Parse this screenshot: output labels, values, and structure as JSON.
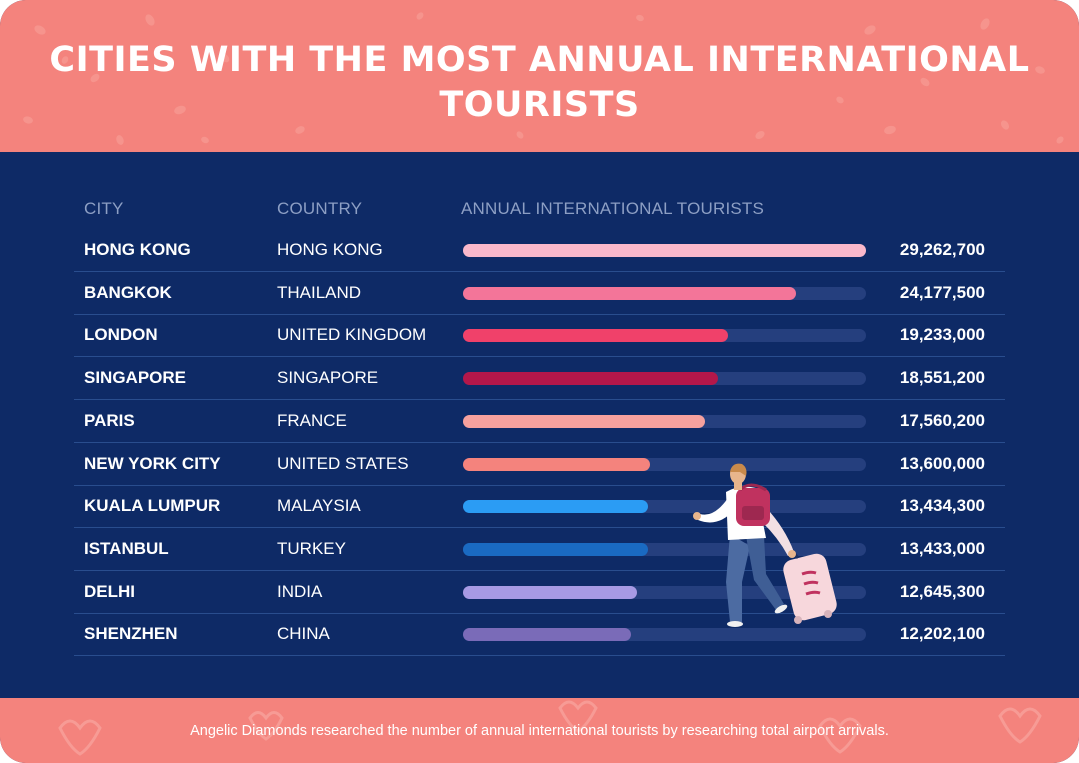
{
  "title": "CITIES WITH THE MOST ANNUAL INTERNATIONAL TOURISTS",
  "columns": {
    "city": "CITY",
    "country": "COUNTRY",
    "tourists": "ANNUAL INTERNATIONAL TOURISTS"
  },
  "footer": "Angelic Diamonds researched the number of annual international tourists by researching total airport arrivals.",
  "chart_data": {
    "type": "bar",
    "orientation": "horizontal",
    "title": "CITIES WITH THE MOST ANNUAL INTERNATIONAL TOURISTS",
    "categories": [
      "HONG KONG",
      "BANGKOK",
      "LONDON",
      "SINGAPORE",
      "PARIS",
      "NEW YORK CITY",
      "KUALA LUMPUR",
      "ISTANBUL",
      "DELHI",
      "SHENZHEN"
    ],
    "countries": [
      "HONG KONG",
      "THAILAND",
      "UNITED KINGDOM",
      "SINGAPORE",
      "FRANCE",
      "UNITED STATES",
      "MALAYSIA",
      "TURKEY",
      "INDIA",
      "CHINA"
    ],
    "values": [
      29262700,
      24177500,
      19233000,
      18551200,
      17560200,
      13600000,
      13434300,
      13433000,
      12645300,
      12202100
    ],
    "value_labels": [
      "29,262,700",
      "24,177,500",
      "19,233,000",
      "18,551,200",
      "17,560,200",
      "13,600,000",
      "13,434,300",
      "13,433,000",
      "12,645,300",
      "12,202,100"
    ],
    "bar_colors": [
      "#f9b8cb",
      "#f37599",
      "#f0416a",
      "#b3174a",
      "#f6a19e",
      "#f4837d",
      "#2b9cf4",
      "#1a6ac2",
      "#a79ae4",
      "#7a6bb8"
    ],
    "xlim": [
      0,
      29262700
    ]
  }
}
